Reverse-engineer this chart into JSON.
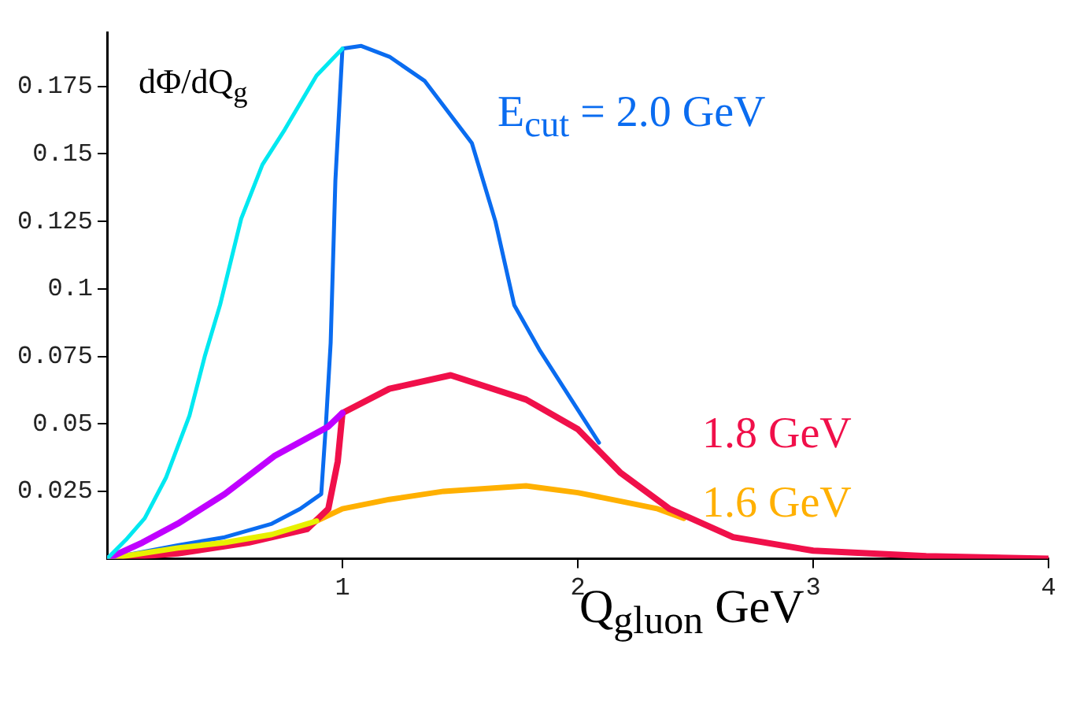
{
  "chart_data": {
    "type": "line",
    "xlabel": "Q$_{gluon}$ GeV",
    "ylabel": "dΦ/dQ$_{g}$",
    "xlim": [
      0,
      4
    ],
    "xticks": [
      1,
      2,
      3,
      4
    ],
    "ylim": [
      0,
      0.195
    ],
    "yticks": [
      0.025,
      0.05,
      0.075,
      0.1,
      0.125,
      0.15,
      0.175
    ],
    "grid": false,
    "legend": false,
    "marker": "none",
    "line_style": "solid",
    "series": [
      {
        "color": "#00e8f0",
        "x": [
          0,
          0.08,
          0.16,
          0.25,
          0.35,
          0.415,
          0.48,
          0.57,
          0.66,
          0.755,
          0.89,
          1.0
        ],
        "values": [
          0,
          0.007,
          0.015,
          0.03,
          0.053,
          0.075,
          0.094,
          0.126,
          0.146,
          0.159,
          0.179,
          0.189
        ]
      },
      {
        "color": "#c000ff",
        "x": [
          0,
          0.15,
          0.3,
          0.5,
          0.71,
          0.94,
          1.0
        ],
        "values": [
          0,
          0.006,
          0.013,
          0.024,
          0.038,
          0.049,
          0.054
        ]
      },
      {
        "color": "#e8f000",
        "x": [
          0,
          0.3,
          0.5,
          0.7,
          0.89
        ],
        "values": [
          0,
          0.004,
          0.006,
          0.009,
          0.014
        ]
      },
      {
        "name": "E$_{cut}$ = 2.0 GeV",
        "color": "#0a6cf0",
        "x": [
          0,
          0.3,
          0.5,
          0.7,
          0.82,
          0.91,
          0.93,
          0.95,
          0.97,
          1.0,
          1.08,
          1.2,
          1.35,
          1.55,
          1.65,
          1.73,
          1.84,
          2.09
        ],
        "values": [
          0,
          0.005,
          0.008,
          0.013,
          0.0185,
          0.024,
          0.05,
          0.08,
          0.14,
          0.189,
          0.19,
          0.186,
          0.177,
          0.154,
          0.125,
          0.094,
          0.077,
          0.043
        ]
      },
      {
        "name": "1.8 GeV",
        "color": "#f0104a",
        "x": [
          0,
          0.3,
          0.6,
          0.85,
          0.94,
          0.98,
          1.0,
          1.2,
          1.46,
          1.78,
          2.0,
          2.18,
          2.39,
          2.66,
          3.0,
          3.48,
          4.0
        ],
        "values": [
          0,
          0.002,
          0.006,
          0.011,
          0.0185,
          0.036,
          0.054,
          0.063,
          0.068,
          0.059,
          0.048,
          0.032,
          0.0185,
          0.008,
          0.003,
          0.001,
          0
        ]
      },
      {
        "name": "1.6 GeV",
        "color": "#ffb000",
        "x": [
          0.89,
          1.0,
          1.2,
          1.43,
          1.78,
          2.0,
          2.2,
          2.34,
          2.45
        ],
        "values": [
          0.014,
          0.0185,
          0.022,
          0.025,
          0.027,
          0.0245,
          0.021,
          0.0185,
          0.015
        ]
      }
    ]
  }
}
